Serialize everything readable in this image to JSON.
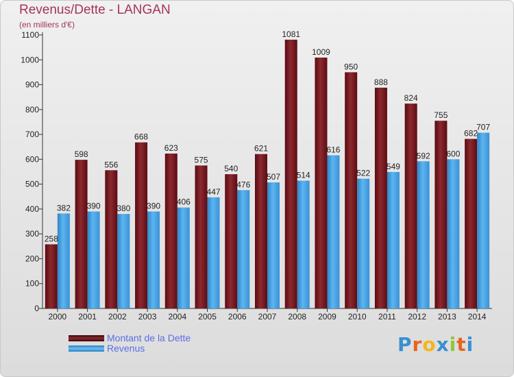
{
  "header": {
    "title": "Revenus/Dette - LANGAN",
    "subtitle": "(en milliers d'€)"
  },
  "legend": {
    "items": [
      {
        "label": "Montant de la Dette",
        "color": "#6e1016"
      },
      {
        "label": "Revenus",
        "color": "#3d9ee0"
      }
    ]
  },
  "logo": {
    "text": "Proxiti",
    "colors": [
      "#3a8fd0",
      "#e8641e",
      "#f2b61e",
      "#3a8fd0",
      "#8cc63f",
      "#e8641e",
      "#3a8fd0"
    ]
  },
  "chart_data": {
    "type": "bar",
    "title": "Revenus/Dette - LANGAN",
    "subtitle": "(en milliers d'€)",
    "categories": [
      "2000",
      "2001",
      "2002",
      "2003",
      "2004",
      "2005",
      "2006",
      "2007",
      "2008",
      "2009",
      "2010",
      "2011",
      "2012",
      "2013",
      "2014"
    ],
    "series": [
      {
        "name": "Montant de la Dette",
        "color": "#7a1a20",
        "values": [
          258,
          598,
          556,
          668,
          623,
          575,
          540,
          621,
          1081,
          1009,
          950,
          888,
          824,
          755,
          682
        ]
      },
      {
        "name": "Revenus",
        "color": "#4aa6e6",
        "values": [
          382,
          390,
          380,
          390,
          406,
          447,
          476,
          507,
          514,
          616,
          522,
          549,
          592,
          600,
          707
        ]
      }
    ],
    "ylim": [
      0,
      1100
    ],
    "yticks": [
      0,
      100,
      200,
      300,
      400,
      500,
      600,
      700,
      800,
      900,
      1000,
      1100
    ],
    "grid": false,
    "legend_position": "bottom-left"
  }
}
